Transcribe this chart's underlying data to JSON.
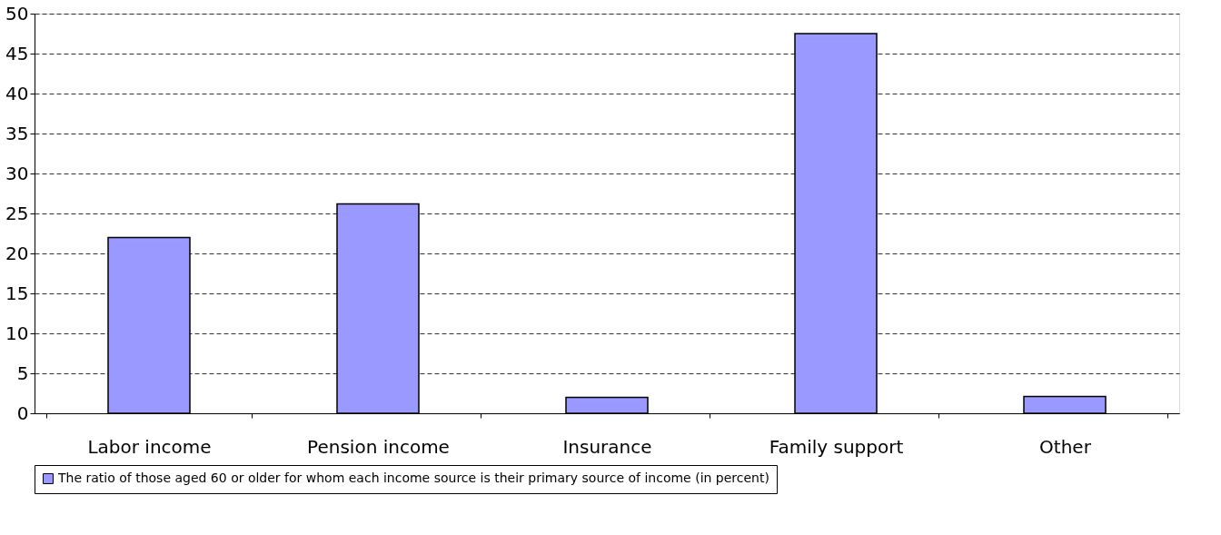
{
  "chart_data": {
    "type": "bar",
    "categories": [
      "Labor income",
      "Pension income",
      "Insurance",
      "Family support",
      "Other"
    ],
    "series": [
      {
        "name": "The ratio of those aged 60 or older for whom each income source is their primary source of income (in percent)",
        "color": "#9999ff",
        "values": [
          22.0,
          26.2,
          2.0,
          47.5,
          2.1
        ]
      }
    ],
    "ylim": [
      0,
      50
    ],
    "yticks": [
      0,
      5,
      10,
      15,
      20,
      25,
      30,
      35,
      40,
      45,
      50
    ],
    "grid": "y",
    "legend": "bottom"
  }
}
